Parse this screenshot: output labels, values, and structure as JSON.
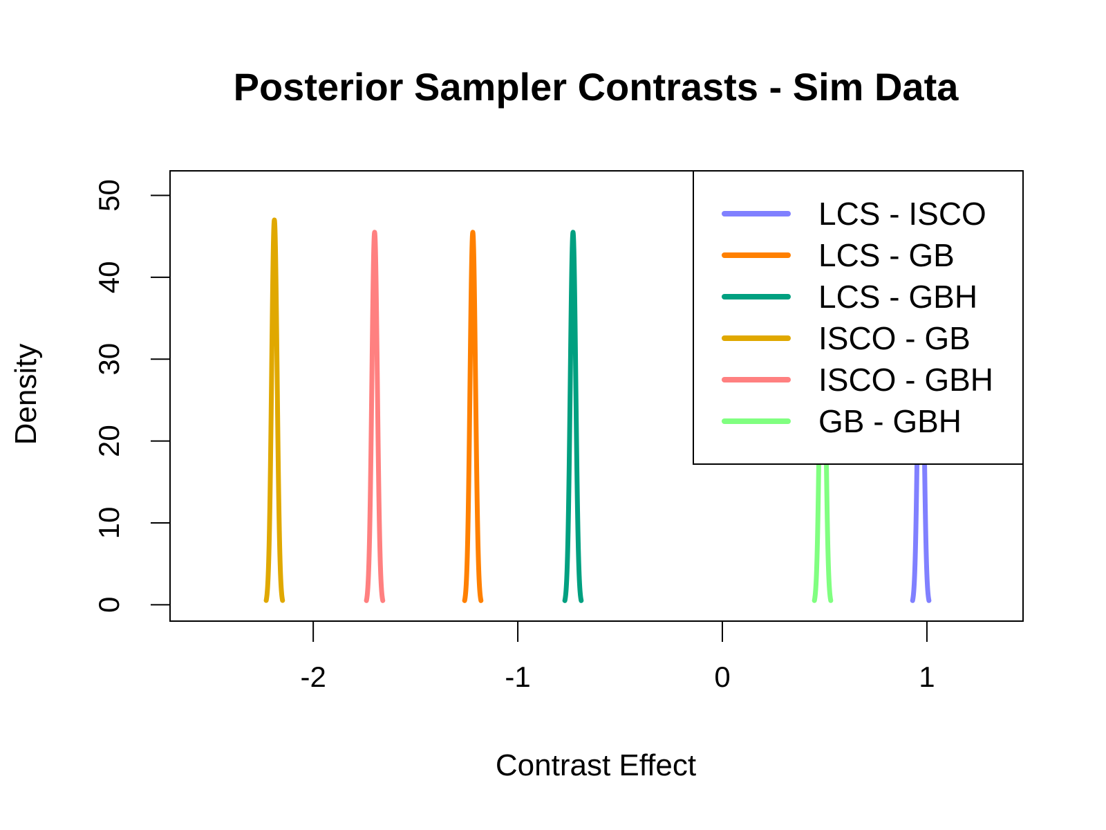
{
  "chart_data": {
    "type": "line",
    "title": "Posterior Sampler Contrasts - Sim Data",
    "xlabel": "Contrast Effect",
    "ylabel": "Density",
    "xlim": [
      -2.7,
      1.47
    ],
    "ylim": [
      -2,
      53
    ],
    "x_ticks": [
      -2,
      -1,
      0,
      1
    ],
    "y_ticks": [
      0,
      10,
      20,
      30,
      40,
      50
    ],
    "legend_position": "top-right",
    "series": [
      {
        "name": "LCS - ISCO",
        "color": "#8080FF",
        "mean": 0.97,
        "peak_density": 46.0,
        "width": 0.04
      },
      {
        "name": "LCS - GB",
        "color": "#FF8000",
        "mean": -1.22,
        "peak_density": 45.5,
        "width": 0.04
      },
      {
        "name": "LCS - GBH",
        "color": "#00A080",
        "mean": -0.73,
        "peak_density": 45.5,
        "width": 0.04
      },
      {
        "name": "ISCO - GB",
        "color": "#E0A800",
        "mean": -2.19,
        "peak_density": 47.0,
        "width": 0.04
      },
      {
        "name": "ISCO - GBH",
        "color": "#FF8080",
        "mean": -1.7,
        "peak_density": 45.5,
        "width": 0.04
      },
      {
        "name": "GB - GBH",
        "color": "#80FF80",
        "mean": 0.49,
        "peak_density": 46.0,
        "width": 0.04
      }
    ]
  }
}
